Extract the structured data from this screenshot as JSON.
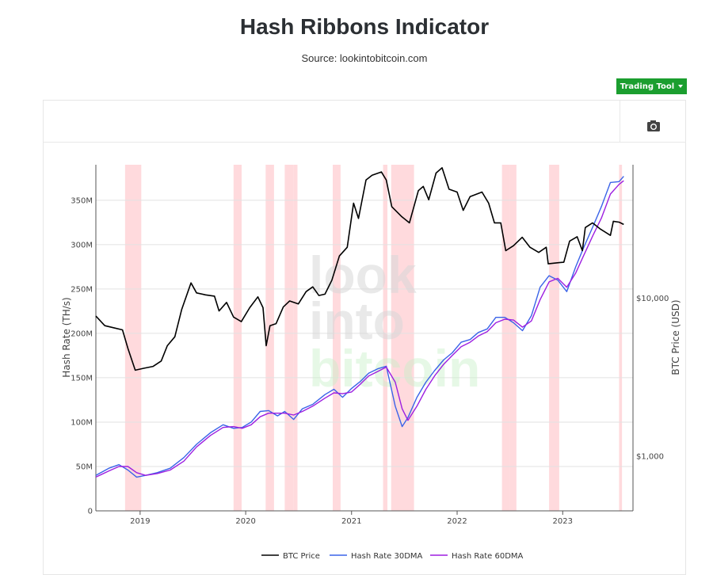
{
  "header": {
    "title": "Hash Ribbons Indicator",
    "subtitle": "Source: lookintobitcoin.com"
  },
  "toolbar": {
    "trading_tool_label": "Trading Tool",
    "camera_icon": "camera-icon"
  },
  "watermark": {
    "line1": "look",
    "line2": "into",
    "line3": "bitcoin"
  },
  "colors": {
    "btc_price": "#000000",
    "hash_30dma": "#3a63e8",
    "hash_60dma": "#9d1fe0",
    "capitulation_band": "#ffd6d9",
    "button_green": "#1b9e2f"
  },
  "chart_data": {
    "type": "line",
    "title": "Hash Ribbons Indicator",
    "x_ticks": [
      "2019",
      "2020",
      "2021",
      "2022",
      "2023"
    ],
    "y_left": {
      "label": "Hash Rate (TH/s)",
      "ticks": [
        "0",
        "50M",
        "100M",
        "150M",
        "200M",
        "250M",
        "300M",
        "350M"
      ],
      "range": [
        0,
        390000000
      ]
    },
    "y_right": {
      "label": "BTC Price (USD)",
      "scale": "log",
      "ticks": [
        "$1,000",
        "$10,000"
      ],
      "range": [
        450,
        70000
      ]
    },
    "x_range": [
      "2018-08-01",
      "2023-09-01"
    ],
    "grid": true,
    "legend_position": "bottom",
    "capitulation_periods": [
      [
        "2018-11-10",
        "2019-01-05"
      ],
      [
        "2019-11-20",
        "2019-12-18"
      ],
      [
        "2020-03-10",
        "2020-04-08"
      ],
      [
        "2020-05-15",
        "2020-06-15"
      ],
      [
        "2020-06-15",
        "2020-06-28"
      ],
      [
        "2020-10-28",
        "2020-11-24"
      ],
      [
        "2021-04-20",
        "2021-05-05"
      ],
      [
        "2021-05-18",
        "2021-08-05"
      ],
      [
        "2022-06-05",
        "2022-07-01"
      ],
      [
        "2022-07-01",
        "2022-07-25"
      ],
      [
        "2022-11-15",
        "2022-12-20"
      ],
      [
        "2023-07-15",
        "2023-07-25"
      ]
    ],
    "series": [
      {
        "name": "BTC Price",
        "axis": "right",
        "x": [
          "2018-08-01",
          "2018-09-01",
          "2018-10-01",
          "2018-11-01",
          "2018-11-20",
          "2018-12-15",
          "2019-01-15",
          "2019-02-15",
          "2019-03-15",
          "2019-04-05",
          "2019-05-01",
          "2019-05-25",
          "2019-06-26",
          "2019-07-15",
          "2019-08-15",
          "2019-09-15",
          "2019-10-01",
          "2019-10-27",
          "2019-11-20",
          "2019-12-17",
          "2020-01-15",
          "2020-02-12",
          "2020-03-01",
          "2020-03-12",
          "2020-03-25",
          "2020-04-15",
          "2020-05-10",
          "2020-06-01",
          "2020-07-01",
          "2020-07-28",
          "2020-08-20",
          "2020-09-10",
          "2020-10-01",
          "2020-10-25",
          "2020-11-20",
          "2020-12-17",
          "2021-01-08",
          "2021-01-25",
          "2021-02-20",
          "2021-03-13",
          "2021-04-14",
          "2021-05-01",
          "2021-05-20",
          "2021-06-22",
          "2021-07-20",
          "2021-08-20",
          "2021-09-06",
          "2021-09-25",
          "2021-10-20",
          "2021-11-10",
          "2021-12-04",
          "2022-01-01",
          "2022-01-22",
          "2022-02-15",
          "2022-03-28",
          "2022-04-20",
          "2022-05-10",
          "2022-06-01",
          "2022-06-18",
          "2022-07-15",
          "2022-08-14",
          "2022-09-10",
          "2022-10-10",
          "2022-11-05",
          "2022-11-12",
          "2022-12-20",
          "2023-01-05",
          "2023-01-25",
          "2023-02-20",
          "2023-03-10",
          "2023-03-20",
          "2023-04-14",
          "2023-05-10",
          "2023-06-15",
          "2023-06-25",
          "2023-07-15",
          "2023-07-31"
        ],
        "y": [
          7700,
          6700,
          6500,
          6300,
          4800,
          3500,
          3600,
          3700,
          4000,
          5000,
          5700,
          8500,
          12500,
          10800,
          10500,
          10300,
          8300,
          9400,
          7600,
          7100,
          8700,
          10200,
          8700,
          5000,
          6700,
          6900,
          8800,
          9600,
          9200,
          11000,
          11800,
          10400,
          10600,
          13000,
          18500,
          21000,
          40000,
          32000,
          56000,
          60000,
          63000,
          56000,
          38000,
          33000,
          30000,
          48000,
          51000,
          42000,
          62000,
          67000,
          49000,
          47000,
          36000,
          44000,
          47000,
          40000,
          30000,
          30000,
          20000,
          21500,
          24300,
          21000,
          19500,
          21000,
          16500,
          16800,
          16900,
          23000,
          24500,
          20000,
          28000,
          30000,
          27500,
          25000,
          30700,
          30300,
          29300
        ]
      },
      {
        "name": "Hash Rate 30DMA",
        "axis": "left",
        "x": [
          "2018-08-01",
          "2018-09-15",
          "2018-10-20",
          "2018-11-20",
          "2018-12-20",
          "2019-01-20",
          "2019-03-01",
          "2019-04-15",
          "2019-06-01",
          "2019-07-15",
          "2019-09-01",
          "2019-10-15",
          "2019-11-20",
          "2019-12-20",
          "2020-01-20",
          "2020-02-20",
          "2020-03-20",
          "2020-04-20",
          "2020-05-15",
          "2020-06-15",
          "2020-07-15",
          "2020-08-20",
          "2020-10-01",
          "2020-11-01",
          "2020-12-01",
          "2021-01-01",
          "2021-02-01",
          "2021-03-01",
          "2021-04-01",
          "2021-05-01",
          "2021-06-01",
          "2021-06-25",
          "2021-07-15",
          "2021-08-15",
          "2021-09-15",
          "2021-10-15",
          "2021-11-15",
          "2021-12-15",
          "2022-01-15",
          "2022-02-15",
          "2022-03-15",
          "2022-04-15",
          "2022-05-15",
          "2022-06-15",
          "2022-07-15",
          "2022-08-15",
          "2022-09-15",
          "2022-10-15",
          "2022-11-15",
          "2022-12-15",
          "2023-01-15",
          "2023-02-15",
          "2023-03-15",
          "2023-04-15",
          "2023-05-15",
          "2023-06-15",
          "2023-07-15",
          "2023-07-31"
        ],
        "y": [
          40000000,
          48000000,
          52000000,
          46000000,
          38000000,
          40000000,
          43000000,
          48000000,
          60000000,
          75000000,
          88000000,
          97000000,
          93000000,
          94000000,
          100000000,
          112000000,
          113000000,
          107000000,
          112000000,
          103000000,
          115000000,
          120000000,
          131000000,
          137000000,
          128000000,
          138000000,
          146000000,
          155000000,
          160000000,
          163000000,
          118000000,
          95000000,
          105000000,
          128000000,
          145000000,
          158000000,
          170000000,
          178000000,
          190000000,
          193000000,
          201000000,
          205000000,
          218000000,
          218000000,
          212000000,
          203000000,
          220000000,
          252000000,
          265000000,
          260000000,
          247000000,
          275000000,
          297000000,
          320000000,
          343000000,
          370000000,
          371000000,
          377000000
        ]
      },
      {
        "name": "Hash Rate 60DMA",
        "axis": "left",
        "x": [
          "2018-08-01",
          "2018-09-15",
          "2018-10-20",
          "2018-11-20",
          "2018-12-20",
          "2019-01-20",
          "2019-03-01",
          "2019-04-15",
          "2019-06-01",
          "2019-07-15",
          "2019-09-01",
          "2019-10-15",
          "2019-11-20",
          "2019-12-20",
          "2020-01-20",
          "2020-02-20",
          "2020-03-20",
          "2020-04-20",
          "2020-05-15",
          "2020-06-15",
          "2020-07-15",
          "2020-08-20",
          "2020-10-01",
          "2020-11-01",
          "2020-12-01",
          "2021-01-01",
          "2021-02-01",
          "2021-03-01",
          "2021-04-01",
          "2021-05-01",
          "2021-06-01",
          "2021-06-25",
          "2021-07-15",
          "2021-08-15",
          "2021-09-15",
          "2021-10-15",
          "2021-11-15",
          "2021-12-15",
          "2022-01-15",
          "2022-02-15",
          "2022-03-15",
          "2022-04-15",
          "2022-05-15",
          "2022-06-15",
          "2022-07-15",
          "2022-08-15",
          "2022-09-15",
          "2022-10-15",
          "2022-11-15",
          "2022-12-15",
          "2023-01-15",
          "2023-02-15",
          "2023-03-15",
          "2023-04-15",
          "2023-05-15",
          "2023-06-15",
          "2023-07-15",
          "2023-07-31"
        ],
        "y": [
          38000000,
          45000000,
          50000000,
          50000000,
          43000000,
          40000000,
          42000000,
          46000000,
          56000000,
          72000000,
          85000000,
          94000000,
          95000000,
          93000000,
          97000000,
          106000000,
          110000000,
          110000000,
          110000000,
          108000000,
          112000000,
          118000000,
          127000000,
          133000000,
          132000000,
          134000000,
          143000000,
          152000000,
          157000000,
          162000000,
          145000000,
          115000000,
          102000000,
          118000000,
          137000000,
          152000000,
          165000000,
          175000000,
          185000000,
          190000000,
          197000000,
          202000000,
          212000000,
          216000000,
          215000000,
          207000000,
          214000000,
          238000000,
          258000000,
          262000000,
          252000000,
          268000000,
          288000000,
          310000000,
          330000000,
          357000000,
          368000000,
          372000000
        ]
      }
    ]
  }
}
